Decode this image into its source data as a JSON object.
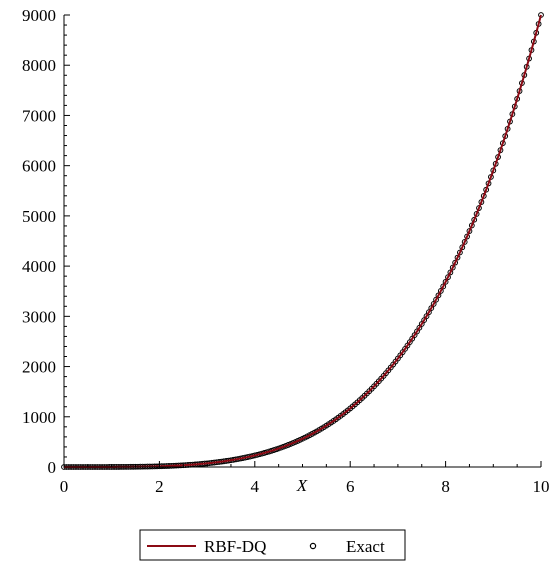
{
  "chart_data": {
    "type": "line",
    "title": "",
    "xlabel": "X",
    "ylabel": "",
    "xlim": [
      0,
      10
    ],
    "ylim": [
      0,
      9000
    ],
    "x_ticks": [
      "0",
      "2",
      "4",
      "6",
      "8",
      "10"
    ],
    "y_ticks": [
      "0",
      "1000",
      "2000",
      "3000",
      "4000",
      "5000",
      "6000",
      "7000",
      "8000",
      "9000"
    ],
    "grid": false,
    "legend_position": "bottom",
    "function": "y = 0.9 * x^4",
    "series": [
      {
        "name": "RBF-DQ",
        "style": "line",
        "color": "#8b0a14",
        "x_range": [
          0,
          10
        ]
      },
      {
        "name": "Exact",
        "style": "circle-markers",
        "color": "#000000",
        "x_range": [
          0,
          10
        ],
        "marker_step": 0.05
      }
    ]
  }
}
